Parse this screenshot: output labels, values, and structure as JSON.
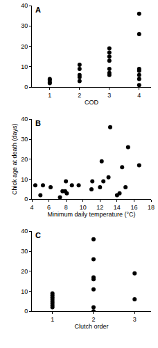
{
  "chart_data": [
    {
      "type": "scatter",
      "title": "A",
      "xlabel": "COD",
      "color": "#000000",
      "marker": "circle",
      "x": [
        1,
        1,
        1,
        1,
        2,
        2,
        2,
        2,
        2,
        3,
        3,
        3,
        3,
        3,
        3,
        3,
        4,
        4,
        4,
        4,
        4,
        4,
        4
      ],
      "y": [
        2,
        2.5,
        3.5,
        4,
        3,
        5,
        6,
        9,
        11,
        6,
        7,
        9,
        13,
        15,
        17,
        19,
        1,
        4,
        6,
        8,
        9,
        26,
        36
      ],
      "xlim": [
        0.4,
        4.4
      ],
      "xticks": [
        1,
        2,
        3,
        4
      ],
      "ylim": [
        0,
        40
      ],
      "yticks": [
        0,
        10,
        20,
        30,
        40
      ]
    },
    {
      "type": "scatter",
      "title": "B",
      "xlabel": "Minimum daily temperature (°C)",
      "ylabel": "Chick age at death (days)",
      "color": "#000000",
      "marker": "circle",
      "x": [
        4.4,
        5,
        5.3,
        6.2,
        7.3,
        7.6,
        7.9,
        8,
        8.1,
        8.7,
        9.5,
        11,
        11.1,
        12,
        12.2,
        12.4,
        13,
        13.2,
        14,
        14.3,
        14.6,
        15,
        15.3,
        16.6
      ],
      "y": [
        7,
        2,
        7,
        6,
        1,
        4,
        4,
        9,
        3,
        7,
        7,
        5,
        9,
        6,
        19,
        9,
        11,
        36,
        2,
        3,
        16,
        6,
        26,
        17
      ],
      "xlim": [
        4,
        18
      ],
      "xticks": [
        4,
        6,
        8,
        10,
        12,
        14,
        16,
        18
      ],
      "ylim": [
        0,
        40
      ],
      "yticks": [
        0,
        10,
        20,
        30,
        40
      ]
    },
    {
      "type": "scatter",
      "title": "C",
      "xlabel": "Clutch order",
      "color": "#000000",
      "marker": "circle",
      "x": [
        1,
        1,
        1,
        1,
        1,
        1,
        1,
        1,
        2,
        2,
        2,
        2,
        2,
        2,
        2,
        3,
        3
      ],
      "y": [
        2,
        3,
        4,
        5,
        6,
        7,
        8,
        9,
        0,
        2,
        11,
        16,
        17,
        26,
        36,
        6,
        19
      ],
      "xlim": [
        0.5,
        3.4
      ],
      "xticks": [
        1,
        2,
        3
      ],
      "ylim": [
        0,
        40
      ],
      "yticks": [
        0,
        10,
        20,
        30,
        40
      ]
    }
  ]
}
